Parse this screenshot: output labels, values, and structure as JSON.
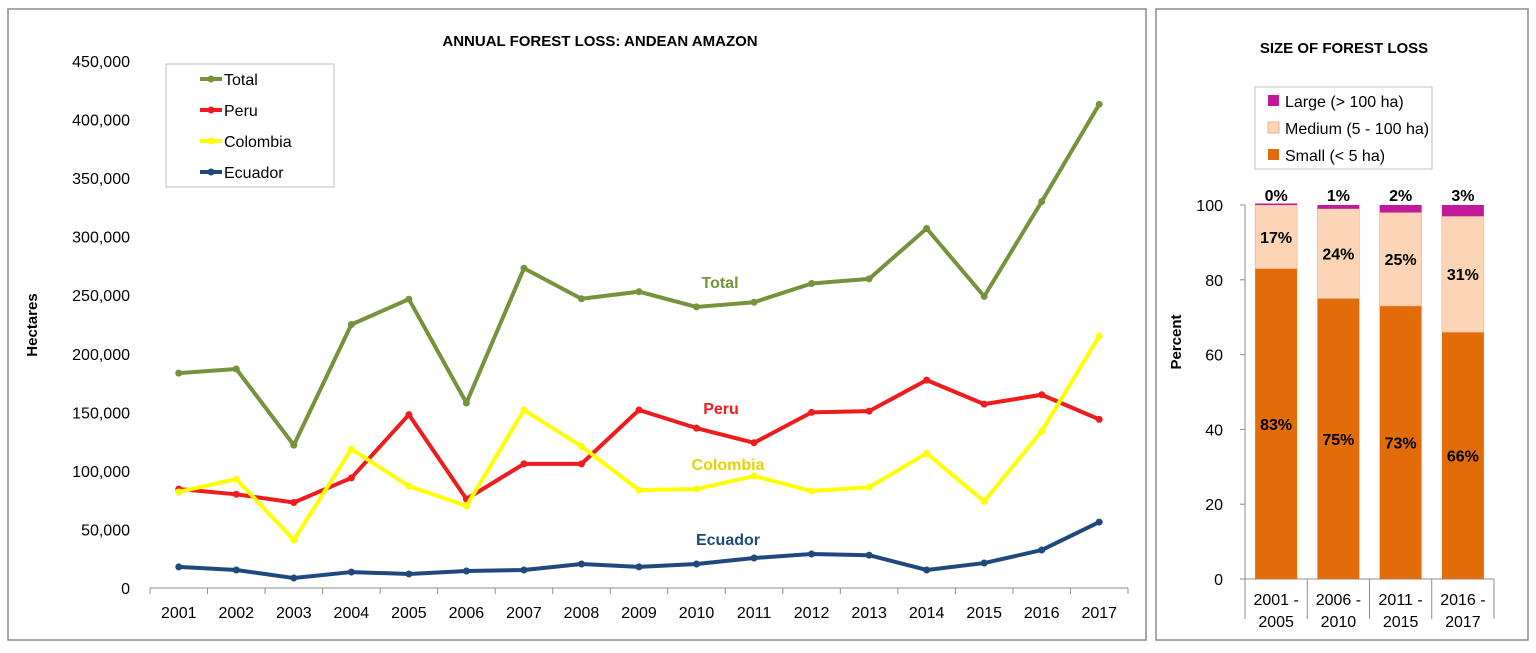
{
  "chart_data": [
    {
      "type": "line",
      "title": "ANNUAL FOREST LOSS: ANDEAN AMAZON",
      "xlabel": "",
      "ylabel": "Hectares",
      "ylim": [
        0,
        450000
      ],
      "yticks": [
        "0",
        "50,000",
        "100,000",
        "150,000",
        "200,000",
        "250,000",
        "300,000",
        "350,000",
        "400,000",
        "450,000"
      ],
      "x": [
        "2001",
        "2002",
        "2003",
        "2004",
        "2005",
        "2006",
        "2007",
        "2008",
        "2009",
        "2010",
        "2011",
        "2012",
        "2013",
        "2014",
        "2015",
        "2016",
        "2017"
      ],
      "grid": false,
      "legend_position": "top-left",
      "series": [
        {
          "name": "Total",
          "color": "#76923c",
          "label": "Total",
          "values": [
            183500,
            187000,
            122000,
            225000,
            246600,
            158000,
            273000,
            247000,
            253000,
            240000,
            244000,
            260000,
            264000,
            307000,
            249000,
            330000,
            413000
          ]
        },
        {
          "name": "Peru",
          "color": "#ee1c1c",
          "label": "Peru",
          "values": [
            84500,
            80000,
            73000,
            94000,
            148000,
            76000,
            106000,
            106000,
            152000,
            136500,
            124000,
            150000,
            151000,
            177500,
            157000,
            165000,
            144000
          ]
        },
        {
          "name": "Colombia",
          "color": "#ffff00",
          "label": "Colombia",
          "label_color": "#e6d200",
          "values": [
            82000,
            93000,
            41000,
            118600,
            87000,
            70000,
            152000,
            121000,
            83600,
            84500,
            95600,
            82800,
            86000,
            115000,
            74000,
            134000,
            215000
          ]
        },
        {
          "name": "Ecuador",
          "color": "#1f497d",
          "label": "Ecuador",
          "values": [
            18000,
            15400,
            8500,
            13600,
            12000,
            14500,
            15400,
            20500,
            18000,
            20500,
            25600,
            29000,
            28000,
            15400,
            21300,
            32400,
            56300
          ]
        }
      ]
    },
    {
      "type": "bar",
      "stacked": true,
      "title": "SIZE OF FOREST LOSS",
      "xlabel": "",
      "ylabel": "Percent",
      "ylim": [
        0,
        100
      ],
      "yticks": [
        "0",
        "20",
        "40",
        "60",
        "80",
        "100"
      ],
      "categories": [
        [
          "2001 -",
          "2005"
        ],
        [
          "2006 -",
          "2010"
        ],
        [
          "2011 -",
          "2015"
        ],
        [
          "2016 -",
          "2017"
        ]
      ],
      "legend_position": "top",
      "series": [
        {
          "name": "Small (< 5 ha)",
          "color": "#e36c0a",
          "values": [
            83,
            75,
            73,
            66
          ],
          "labels": [
            "83%",
            "75%",
            "73%",
            "66%"
          ]
        },
        {
          "name": "Medium (5 - 100 ha)",
          "color": "#fbd5b5",
          "values": [
            17,
            24,
            25,
            31
          ],
          "labels": [
            "17%",
            "24%",
            "25%",
            "31%"
          ]
        },
        {
          "name": "Large (> 100 ha)",
          "color": "#c0199a",
          "values": [
            0,
            1,
            2,
            3
          ],
          "labels": [
            "0%",
            "1%",
            "2%",
            "3%"
          ]
        }
      ]
    }
  ]
}
